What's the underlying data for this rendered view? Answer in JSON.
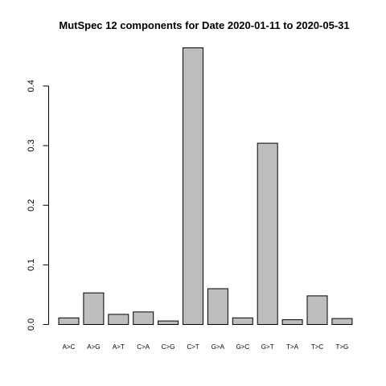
{
  "chart_data": {
    "type": "bar",
    "title": "MutSpec 12 components for Date 2020-01-11 to 2020-05-31",
    "xlabel": "",
    "ylabel": "",
    "categories": [
      "A>C",
      "A>G",
      "A>T",
      "C>A",
      "C>G",
      "C>T",
      "G>A",
      "G>C",
      "G>T",
      "T>A",
      "T>C",
      "T>G"
    ],
    "values": [
      0.011,
      0.053,
      0.017,
      0.021,
      0.006,
      0.464,
      0.06,
      0.011,
      0.304,
      0.008,
      0.048,
      0.01
    ],
    "ylim": [
      0,
      0.464
    ],
    "yticks": [
      "0.0",
      "0.1",
      "0.2",
      "0.3",
      "0.4"
    ],
    "bar_color": "#bebebe",
    "grid": false,
    "legend": "none"
  }
}
